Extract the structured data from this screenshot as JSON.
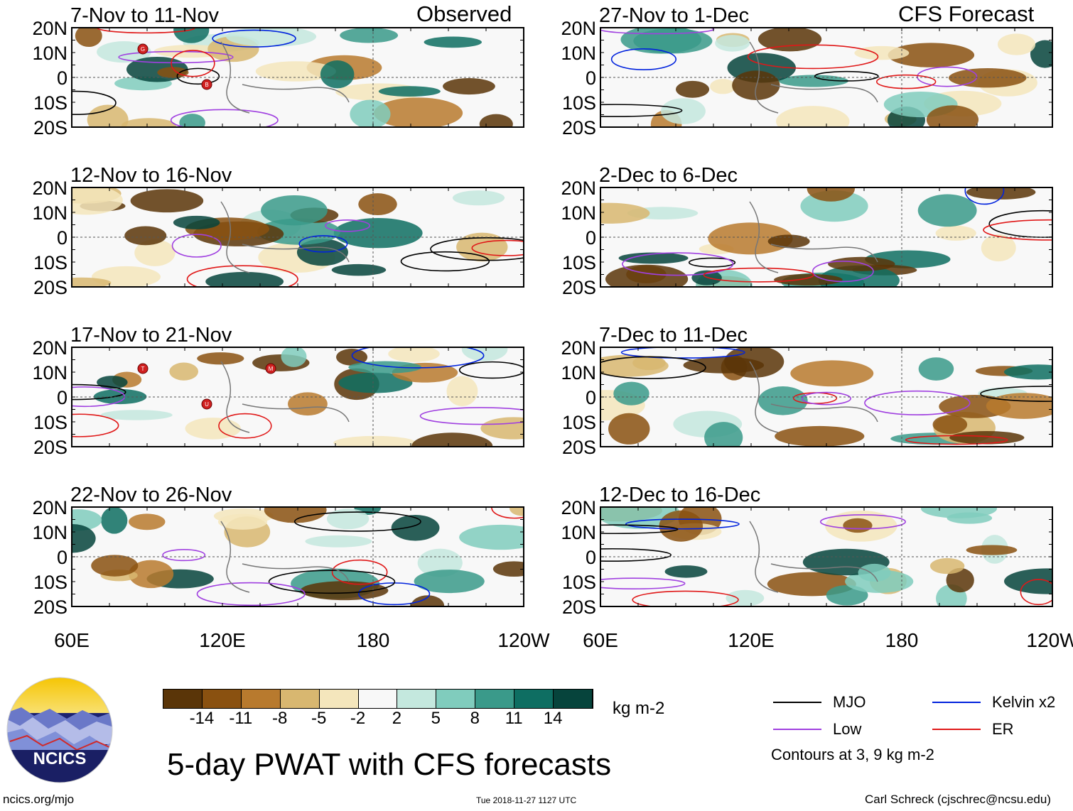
{
  "figure": {
    "title": "5-day PWAT with CFS forecasts",
    "observed_header": "Observed",
    "forecast_header": "CFS Forecast",
    "source_url": "ncics.org/mjo",
    "timestamp": "Tue 2018-11-27 1127 UTC",
    "credit": "Carl Schreck (cjschrec@ncsu.edu)",
    "logo_text": "NCICS"
  },
  "axes": {
    "lat_labels": [
      "20N",
      "10N",
      "0",
      "10S",
      "20S"
    ],
    "lon_labels": [
      "60E",
      "120E",
      "180",
      "120W"
    ]
  },
  "panels": {
    "observed": [
      {
        "period": "7-Nov to 11-Nov",
        "storms": [
          "G",
          "B"
        ]
      },
      {
        "period": "12-Nov to 16-Nov",
        "storms": []
      },
      {
        "period": "17-Nov to 21-Nov",
        "storms": [
          "T",
          "U",
          "M"
        ]
      },
      {
        "period": "22-Nov to 26-Nov",
        "storms": []
      }
    ],
    "forecast": [
      {
        "period": "27-Nov to 1-Dec"
      },
      {
        "period": "2-Dec to 6-Dec"
      },
      {
        "period": "7-Dec to 11-Dec"
      },
      {
        "period": "12-Dec to 16-Dec"
      }
    ]
  },
  "colorbar": {
    "units": "kg m-2",
    "ticks": [
      "-14",
      "-11",
      "-8",
      "-5",
      "-2",
      "2",
      "5",
      "8",
      "11",
      "14"
    ],
    "colors": [
      "#5a3508",
      "#8a5110",
      "#b87a2e",
      "#d8b770",
      "#f4e6bc",
      "#f8f8f8",
      "#c4e8de",
      "#80ccbd",
      "#3a9a8a",
      "#0e6e62",
      "#06443c"
    ]
  },
  "legend": {
    "items": [
      {
        "label": "MJO",
        "color": "#000000"
      },
      {
        "label": "Kelvin x2",
        "color": "#0022dd"
      },
      {
        "label": "Low",
        "color": "#a040e0"
      },
      {
        "label": "ER",
        "color": "#e01818"
      }
    ],
    "note": "Contours at 3, 9 kg m-2"
  }
}
